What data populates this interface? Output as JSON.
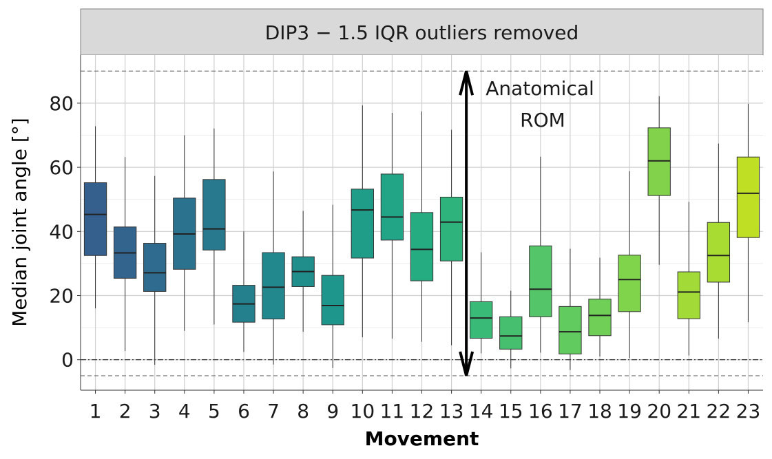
{
  "chart_data": {
    "type": "boxplot",
    "facet_title": "DIP3 − 1.5 IQR outliers removed",
    "xlabel": "Movement",
    "ylabel": "Median joint angle [°]",
    "ylim": [
      -9.5,
      95
    ],
    "yticks": [
      0,
      20,
      40,
      60,
      80
    ],
    "grid": true,
    "reference_lines": [
      {
        "y": 90,
        "style": "dashed"
      },
      {
        "y": -5,
        "style": "dashed"
      },
      {
        "y": 0,
        "style": "dotdash"
      }
    ],
    "annotation": {
      "lines": [
        "Anatomical",
        "ROM"
      ],
      "arrow_from": -5,
      "arrow_to": 90,
      "arrow_x": 13.5
    },
    "categories": [
      "1",
      "2",
      "3",
      "4",
      "5",
      "6",
      "7",
      "8",
      "9",
      "10",
      "11",
      "12",
      "13",
      "14",
      "15",
      "16",
      "17",
      "18",
      "19",
      "20",
      "21",
      "22",
      "23"
    ],
    "boxes": [
      {
        "min": 16.0,
        "q1": 32.5,
        "median": 45.3,
        "q3": 55.2,
        "max": 72.8,
        "color": "#355f8d"
      },
      {
        "min": 2.7,
        "q1": 25.4,
        "median": 33.3,
        "q3": 41.4,
        "max": 63.2,
        "color": "#32648e"
      },
      {
        "min": -1.6,
        "q1": 21.3,
        "median": 27.1,
        "q3": 36.3,
        "max": 57.3,
        "color": "#2e6b8e"
      },
      {
        "min": 9.0,
        "q1": 28.2,
        "median": 39.2,
        "q3": 50.4,
        "max": 70.0,
        "color": "#2b728e"
      },
      {
        "min": 11.0,
        "q1": 34.2,
        "median": 40.8,
        "q3": 56.2,
        "max": 72.1,
        "color": "#28798e"
      },
      {
        "min": 2.4,
        "q1": 11.7,
        "median": 17.4,
        "q3": 23.2,
        "max": 40.0,
        "color": "#25808e"
      },
      {
        "min": -1.5,
        "q1": 12.7,
        "median": 22.6,
        "q3": 33.4,
        "max": 58.7,
        "color": "#23878e"
      },
      {
        "min": 8.7,
        "q1": 22.8,
        "median": 27.5,
        "q3": 32.1,
        "max": 46.4,
        "color": "#208f8c"
      },
      {
        "min": -2.6,
        "q1": 10.9,
        "median": 16.9,
        "q3": 26.3,
        "max": 48.3,
        "color": "#1f968b"
      },
      {
        "min": 7.0,
        "q1": 31.7,
        "median": 46.7,
        "q3": 53.2,
        "max": 79.3,
        "color": "#1f9d89"
      },
      {
        "min": 6.6,
        "q1": 37.3,
        "median": 44.5,
        "q3": 57.9,
        "max": 77.0,
        "color": "#21a586"
      },
      {
        "min": 5.6,
        "q1": 24.6,
        "median": 34.4,
        "q3": 45.9,
        "max": 77.4,
        "color": "#26ac81"
      },
      {
        "min": 4.5,
        "q1": 30.8,
        "median": 42.9,
        "q3": 50.7,
        "max": 71.7,
        "color": "#2eb37c"
      },
      {
        "min": 2.0,
        "q1": 6.7,
        "median": 13.0,
        "q3": 18.1,
        "max": 33.5,
        "color": "#39ba76"
      },
      {
        "min": -2.7,
        "q1": 3.3,
        "median": 7.4,
        "q3": 13.4,
        "max": 21.5,
        "color": "#46c06f"
      },
      {
        "min": 2.2,
        "q1": 13.4,
        "median": 22.0,
        "q3": 35.5,
        "max": 63.3,
        "color": "#54c568"
      },
      {
        "min": -3.2,
        "q1": 1.8,
        "median": 8.7,
        "q3": 16.6,
        "max": 34.6,
        "color": "#62cb5f"
      },
      {
        "min": 1.0,
        "q1": 7.5,
        "median": 13.8,
        "q3": 18.9,
        "max": 31.8,
        "color": "#6fcf57"
      },
      {
        "min": 0.5,
        "q1": 15.0,
        "median": 25.0,
        "q3": 32.6,
        "max": 58.8,
        "color": "#80d44c"
      },
      {
        "min": 29.6,
        "q1": 51.2,
        "median": 62.0,
        "q3": 72.3,
        "max": 82.2,
        "color": "#82d34b"
      },
      {
        "min": 1.3,
        "q1": 12.8,
        "median": 21.1,
        "q3": 27.4,
        "max": 49.2,
        "color": "#a2db37"
      },
      {
        "min": 6.6,
        "q1": 24.2,
        "median": 32.5,
        "q3": 42.8,
        "max": 67.4,
        "color": "#a9dc32"
      },
      {
        "min": 11.7,
        "q1": 38.1,
        "median": 51.9,
        "q3": 63.2,
        "max": 79.8,
        "color": "#bfdf25"
      }
    ]
  }
}
